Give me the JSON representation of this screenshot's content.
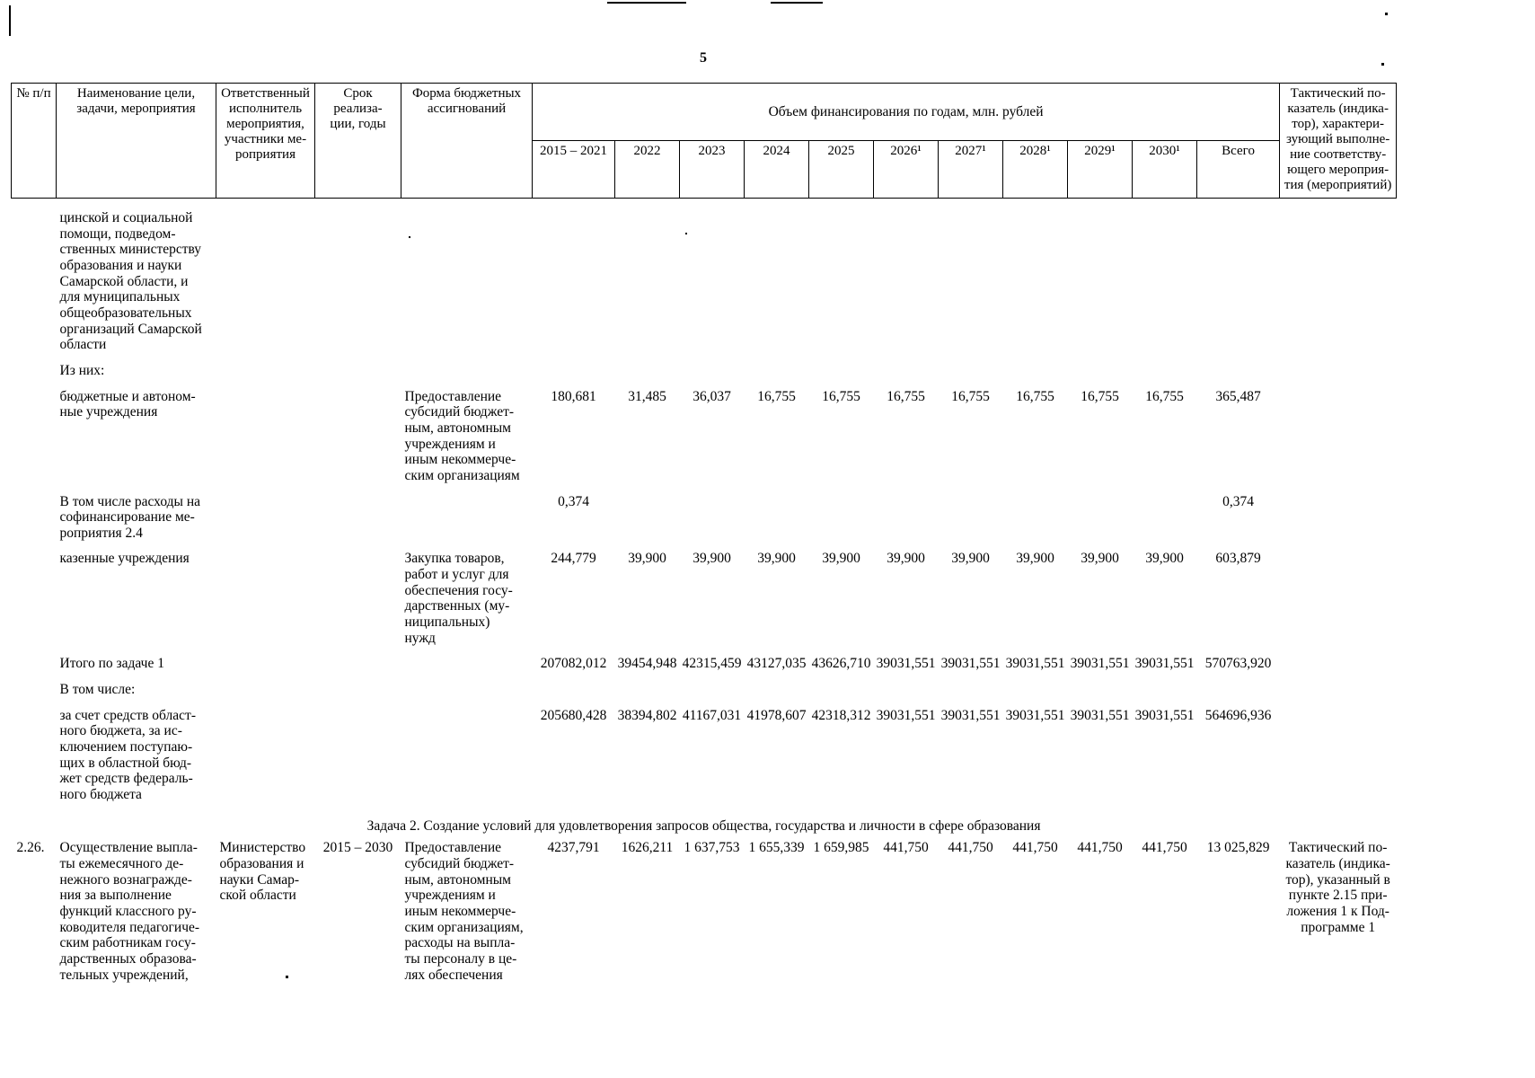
{
  "page": {
    "number": "5"
  },
  "artifacts": {
    "note": "scan-edge-marks"
  },
  "table": {
    "header": {
      "col_num": "№ п/п",
      "col_name": "Наименование цели,\nзадачи, мероприятия",
      "col_exec": "Ответственный\nисполнитель\nмероприятия,\nучастники ме-\nроприятия",
      "col_term": "Срок реализа-\nции, годы",
      "col_form": "Форма бюджетных\nассигнований",
      "group": "Объем финансирования по годам, млн. рублей",
      "years": [
        "2015 – 2021",
        "2022",
        "2023",
        "2024",
        "2025",
        "2026¹",
        "2027¹",
        "2028¹",
        "2029¹",
        "2030¹",
        "Всего"
      ],
      "col_tactical": "Тактический по-\nказатель (индика-\nтор), характери-\nзующий выполне-\nние соответству-\nющего мероприя-\nтия (мероприятий)"
    },
    "rows": [
      {
        "type": "data",
        "num": "",
        "name": "цинской и социальной\nпомощи, подведом-\nственных министерству\nобразования и науки\nСамарской области, и\nдля муниципальных\nобщеобразовательных\nорганизаций Самарской\nобласти",
        "exec": "",
        "term": "",
        "form": "",
        "values": [
          "",
          "",
          "",
          "",
          "",
          "",
          "",
          "",
          "",
          "",
          ""
        ],
        "tactical": ""
      },
      {
        "type": "data",
        "num": "",
        "name": "Из них:",
        "exec": "",
        "term": "",
        "form": "",
        "values": [
          "",
          "",
          "",
          "",
          "",
          "",
          "",
          "",
          "",
          "",
          ""
        ],
        "tactical": ""
      },
      {
        "type": "data",
        "num": "",
        "name": "бюджетные и автоном-\nные учреждения",
        "exec": "",
        "term": "",
        "form": "Предоставление\nсубсидий бюджет-\nным, автономным\nучреждениям и\nиным некоммерче-\nским организациям",
        "values": [
          "180,681",
          "31,485",
          "36,037",
          "16,755",
          "16,755",
          "16,755",
          "16,755",
          "16,755",
          "16,755",
          "16,755",
          "365,487"
        ],
        "tactical": ""
      },
      {
        "type": "data",
        "num": "",
        "name": "В том числе расходы на\nсофинансирование ме-\nроприятия 2.4",
        "exec": "",
        "term": "",
        "form": "",
        "values": [
          "0,374",
          "",
          "",
          "",
          "",
          "",
          "",
          "",
          "",
          "",
          "0,374"
        ],
        "tactical": ""
      },
      {
        "type": "data",
        "num": "",
        "name": "казенные учреждения",
        "exec": "",
        "term": "",
        "form": "Закупка товаров,\nработ и услуг для\nобеспечения госу-\nдарственных (му-\nниципальных)\nнужд",
        "values": [
          "244,779",
          "39,900",
          "39,900",
          "39,900",
          "39,900",
          "39,900",
          "39,900",
          "39,900",
          "39,900",
          "39,900",
          "603,879"
        ],
        "tactical": ""
      },
      {
        "type": "data",
        "num": "",
        "name": "Итого по задаче 1",
        "exec": "",
        "term": "",
        "form": "",
        "values": [
          "207082,012",
          "39454,948",
          "42315,459",
          "43127,035",
          "43626,710",
          "39031,551",
          "39031,551",
          "39031,551",
          "39031,551",
          "39031,551",
          "570763,920"
        ],
        "tactical": ""
      },
      {
        "type": "data",
        "num": "",
        "name": "В том числе:",
        "exec": "",
        "term": "",
        "form": "",
        "values": [
          "",
          "",
          "",
          "",
          "",
          "",
          "",
          "",
          "",
          "",
          ""
        ],
        "tactical": ""
      },
      {
        "type": "data",
        "num": "",
        "name": "за счет средств област-\nного бюджета, за ис-\nключением поступаю-\nщих в областной бюд-\nжет средств федераль-\nного бюджета",
        "exec": "",
        "term": "",
        "form": "",
        "values": [
          "205680,428",
          "38394,802",
          "41167,031",
          "41978,607",
          "42318,312",
          "39031,551",
          "39031,551",
          "39031,551",
          "39031,551",
          "39031,551",
          "564696,936"
        ],
        "tactical": ""
      },
      {
        "type": "section",
        "text": "Задача 2. Создание условий для удовлетворения запросов общества, государства и личности в сфере образования"
      },
      {
        "type": "data",
        "num": "2.26.",
        "name": "Осуществление выпла-\nты ежемесячного де-\nнежного вознагражде-\nния за выполнение\nфункций классного ру-\nководителя педагогиче-\nским работникам госу-\nдарственных образова-\nтельных учреждений,",
        "exec": "Министерство\nобразования и\nнауки Самар-\nской области",
        "term": "2015 – 2030",
        "form": "Предоставление\nсубсидий бюджет-\nным, автономным\nучреждениям и\nиным некоммерче-\nским организациям,\nрасходы на выпла-\nты персоналу в це-\nлях обеспечения",
        "values": [
          "4237,791",
          "1626,211",
          "1 637,753",
          "1 655,339",
          "1 659,985",
          "441,750",
          "441,750",
          "441,750",
          "441,750",
          "441,750",
          "13 025,829"
        ],
        "tactical": "Тактический по-\nказатель (индика-\nтор), указанный в\nпункте 2.15 при-\nложения 1 к Под-\nпрограмме 1"
      }
    ]
  }
}
